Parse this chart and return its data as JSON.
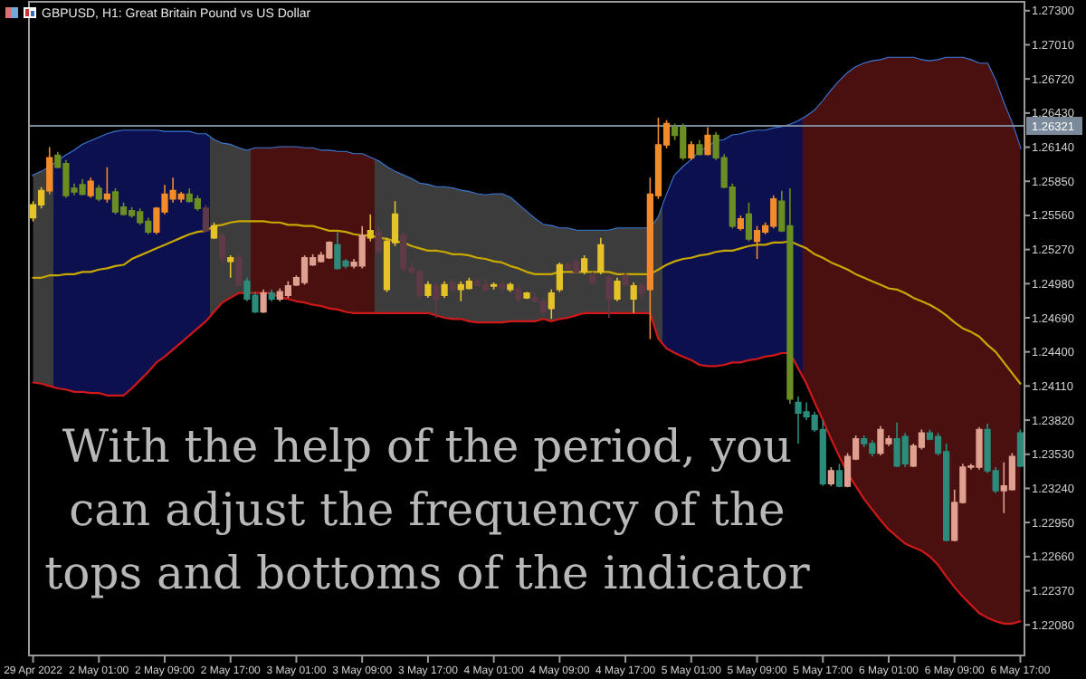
{
  "chart_data": {
    "type": "candlestick",
    "title": "GBPUSD, H1:  Great Britain Pound vs US Dollar",
    "annotations": [
      "With the help of the period, you\ncan adjust the frequency of the\ntops and bottoms of the indicator"
    ],
    "categories": [
      "29 Apr 2022",
      null,
      null,
      null,
      null,
      null,
      null,
      null,
      "2 May 01:00",
      null,
      null,
      null,
      null,
      null,
      null,
      null,
      "2 May 09:00",
      null,
      null,
      null,
      null,
      null,
      null,
      null,
      "2 May 17:00",
      null,
      null,
      null,
      null,
      null,
      null,
      null,
      "3 May 01:00",
      null,
      null,
      null,
      null,
      null,
      null,
      null,
      "3 May 09:00",
      null,
      null,
      null,
      null,
      null,
      null,
      null,
      "3 May 17:00",
      null,
      null,
      null,
      null,
      null,
      null,
      null,
      "4 May 01:00",
      null,
      null,
      null,
      null,
      null,
      null,
      null,
      "4 May 09:00",
      null,
      null,
      null,
      null,
      null,
      null,
      null,
      "4 May 17:00",
      null,
      null,
      null,
      null,
      null,
      null,
      null,
      "5 May 01:00",
      null,
      null,
      null,
      null,
      null,
      null,
      null,
      "5 May 09:00",
      null,
      null,
      null,
      null,
      null,
      null,
      null,
      "5 May 17:00",
      null,
      null,
      null,
      null,
      null,
      null,
      null,
      "6 May 01:00",
      null,
      null,
      null,
      null,
      null,
      null,
      null,
      "6 May 09:00",
      null,
      null,
      null,
      null,
      null,
      null,
      null,
      "6 May 17:00"
    ],
    "ylim": [
      1.2182,
      1.2736
    ],
    "yticks": [
      {
        "value": 1.273,
        "label": "1.27300"
      },
      {
        "value": 1.2701,
        "label": "1.27010"
      },
      {
        "value": 1.2672,
        "label": "1.26720"
      },
      {
        "value": 1.2643,
        "label": "1.26430"
      },
      {
        "value": 1.2614,
        "label": "1.26140"
      },
      {
        "value": 1.2585,
        "label": "1.25850"
      },
      {
        "value": 1.2556,
        "label": "1.25560"
      },
      {
        "value": 1.2527,
        "label": "1.25270"
      },
      {
        "value": 1.2498,
        "label": "1.24980"
      },
      {
        "value": 1.2469,
        "label": "1.24690"
      },
      {
        "value": 1.244,
        "label": "1.24400"
      },
      {
        "value": 1.2411,
        "label": "1.24110"
      },
      {
        "value": 1.2382,
        "label": "1.23820"
      },
      {
        "value": 1.2353,
        "label": "1.23530"
      },
      {
        "value": 1.2324,
        "label": "1.23240"
      },
      {
        "value": 1.2295,
        "label": "1.22950"
      },
      {
        "value": 1.2266,
        "label": "1.22660"
      },
      {
        "value": 1.2237,
        "label": "1.22370"
      },
      {
        "value": 1.2208,
        "label": "1.22080"
      }
    ],
    "ref_lines": [
      {
        "axis": "y",
        "value": 1.26321,
        "label": "1.26321",
        "color": "#7a8a9a"
      }
    ],
    "series": [
      {
        "type": "line",
        "color": "#3a78d8",
        "values": [
          1.259,
          1.2593,
          1.2597,
          1.2602,
          1.2607,
          1.2611,
          1.2616,
          1.2619,
          1.2622,
          1.2625,
          1.2627,
          1.2628,
          1.2628,
          1.2628,
          1.2628,
          1.2628,
          1.2627,
          1.2627,
          1.2627,
          1.2627,
          1.2625,
          1.2625,
          1.262,
          1.2617,
          1.2616,
          1.2613,
          1.2611,
          1.2613,
          1.2613,
          1.2613,
          1.2614,
          1.2614,
          1.2614,
          1.2613,
          1.2613,
          1.2611,
          1.2611,
          1.261,
          1.261,
          1.2608,
          1.2608,
          1.2605,
          1.2602,
          1.2597,
          1.2593,
          1.259,
          1.2587,
          1.2583,
          1.2582,
          1.258,
          1.258,
          1.2579,
          1.2577,
          1.2576,
          1.2574,
          1.2573,
          1.2574,
          1.2574,
          1.2571,
          1.2565,
          1.2559,
          1.2553,
          1.2548,
          1.2547,
          1.2545,
          1.2545,
          1.2543,
          1.2543,
          1.2543,
          1.2543,
          1.2543,
          1.2545,
          1.2545,
          1.2545,
          1.2545,
          1.2545,
          1.2554,
          1.2573,
          1.259,
          1.2597,
          1.2603,
          1.261,
          1.2614,
          1.2619,
          1.262,
          1.2624,
          1.2625,
          1.2627,
          1.2628,
          1.2628,
          1.263,
          1.2631,
          1.2633,
          1.2636,
          1.264,
          1.2645,
          1.2653,
          1.2662,
          1.267,
          1.2677,
          1.2682,
          1.2685,
          1.2687,
          1.2688,
          1.269,
          1.269,
          1.269,
          1.269,
          1.2688,
          1.2687,
          1.2688,
          1.269,
          1.269,
          1.269,
          1.2688,
          1.2685,
          1.2685,
          1.267,
          1.2651,
          1.2634,
          1.2613
        ]
      },
      {
        "type": "line",
        "color": "#c8a800",
        "values": [
          1.2503,
          1.2503,
          1.2505,
          1.2505,
          1.2506,
          1.2506,
          1.2508,
          1.2508,
          1.251,
          1.2511,
          1.2513,
          1.2514,
          1.2519,
          1.2522,
          1.2525,
          1.2528,
          1.2531,
          1.2534,
          1.2537,
          1.254,
          1.2542,
          1.2543,
          1.2547,
          1.2548,
          1.255,
          1.2551,
          1.2551,
          1.2551,
          1.2551,
          1.255,
          1.255,
          1.2548,
          1.2548,
          1.2547,
          1.2547,
          1.2545,
          1.2543,
          1.2543,
          1.2542,
          1.254,
          1.2539,
          1.2539,
          1.2537,
          1.2536,
          1.2534,
          1.2533,
          1.253,
          1.2528,
          1.2526,
          1.2526,
          1.2525,
          1.2523,
          1.2523,
          1.2522,
          1.252,
          1.2519,
          1.2517,
          1.2516,
          1.2513,
          1.2511,
          1.2508,
          1.2506,
          1.2506,
          1.2506,
          1.2508,
          1.2508,
          1.2508,
          1.2508,
          1.2508,
          1.2508,
          1.2508,
          1.2506,
          1.2506,
          1.2506,
          1.2506,
          1.2506,
          1.251,
          1.2514,
          1.2517,
          1.2519,
          1.252,
          1.2522,
          1.2523,
          1.2525,
          1.2526,
          1.2526,
          1.2528,
          1.253,
          1.2531,
          1.2531,
          1.2533,
          1.2533,
          1.2534,
          1.2531,
          1.2528,
          1.2523,
          1.252,
          1.2516,
          1.2513,
          1.251,
          1.2506,
          1.2503,
          1.25,
          1.2497,
          1.2494,
          1.2493,
          1.249,
          1.2486,
          1.2483,
          1.248,
          1.2476,
          1.2471,
          1.2465,
          1.246,
          1.2457,
          1.2453,
          1.2446,
          1.244,
          1.2431,
          1.2422,
          1.2413
        ],
        "lower": [
          1.2414,
          1.2413,
          1.2411,
          1.2409,
          1.2408,
          1.2406,
          1.2406,
          1.2405,
          1.2405,
          1.2403,
          1.2403,
          1.2403,
          1.2409,
          1.2416,
          1.2423,
          1.2431,
          1.2436,
          1.2442,
          1.2448,
          1.2454,
          1.246,
          1.2466,
          1.2474,
          1.2482,
          1.2486,
          1.249,
          1.249,
          1.249,
          1.249,
          1.249,
          1.2486,
          1.2485,
          1.2483,
          1.2482,
          1.248,
          1.2479,
          1.2477,
          1.2476,
          1.2474,
          1.2473,
          1.2473,
          1.2473,
          1.2473,
          1.2473,
          1.2473,
          1.2473,
          1.2473,
          1.2473,
          1.2473,
          1.2471,
          1.2469,
          1.2468,
          1.2468,
          1.2466,
          1.2465,
          1.2465,
          1.2465,
          1.2465,
          1.2466,
          1.2466,
          1.2466,
          1.2466,
          1.2468,
          1.2466,
          1.2468,
          1.2469,
          1.2471,
          1.2473,
          1.2473,
          1.2473,
          1.2473,
          1.2473,
          1.2473,
          1.2473,
          1.2473,
          1.2473,
          1.2451,
          1.2443,
          1.2439,
          1.2436,
          1.2433,
          1.2429,
          1.2428,
          1.2428,
          1.2429,
          1.2431,
          1.2431,
          1.2433,
          1.2434,
          1.2436,
          1.2437,
          1.2439,
          1.2439,
          1.2426,
          1.2413,
          1.2397,
          1.2382,
          1.2366,
          1.2351,
          1.2337,
          1.2326,
          1.2315,
          1.2306,
          1.2297,
          1.2289,
          1.2283,
          1.2277,
          1.2274,
          1.2271,
          1.2266,
          1.2259,
          1.2249,
          1.224,
          1.2232,
          1.2225,
          1.2218,
          1.2214,
          1.2211,
          1.2209,
          1.2209,
          1.2211
        ],
        "upper": [
          1.259,
          1.2593,
          1.2597,
          1.2602,
          1.2607,
          1.2611,
          1.2616,
          1.2619,
          1.2622,
          1.2625,
          1.2627,
          1.2628,
          1.2628,
          1.2628,
          1.2628,
          1.2628,
          1.2627,
          1.2627,
          1.2627,
          1.2627,
          1.2625,
          1.2625,
          1.262,
          1.2617,
          1.2616,
          1.2613,
          1.2611,
          1.2613,
          1.2613,
          1.2613,
          1.2614,
          1.2614,
          1.2614,
          1.2613,
          1.2613,
          1.2611,
          1.2611,
          1.261,
          1.261,
          1.2608,
          1.2608,
          1.2605,
          1.2602,
          1.2597,
          1.2593,
          1.259,
          1.2587,
          1.2583,
          1.2582,
          1.258,
          1.258,
          1.2579,
          1.2577,
          1.2576,
          1.2574,
          1.2573,
          1.2574,
          1.2574,
          1.2571,
          1.2565,
          1.2559,
          1.2553,
          1.2548,
          1.2547,
          1.2545,
          1.2545,
          1.2543,
          1.2543,
          1.2543,
          1.2543,
          1.2543,
          1.2545,
          1.2545,
          1.2545,
          1.2545,
          1.2545,
          1.2554,
          1.2573,
          1.259,
          1.2597,
          1.2603,
          1.261,
          1.2614,
          1.2619,
          1.262,
          1.2624,
          1.2625,
          1.2627,
          1.2628,
          1.2628,
          1.263,
          1.2631,
          1.2633,
          1.2636,
          1.264,
          1.2645,
          1.2653,
          1.2662,
          1.267,
          1.2677,
          1.2682,
          1.2685,
          1.2687,
          1.2688,
          1.269,
          1.269,
          1.269,
          1.269,
          1.2688,
          1.2687,
          1.2688,
          1.269,
          1.269,
          1.269,
          1.2688,
          1.2685,
          1.2685,
          1.267,
          1.2651,
          1.2634,
          1.2613
        ],
        "colors": [
          "#3c3c3c",
          "#3c3c3c",
          "#3c3c3c",
          "#0d104f",
          "#0d104f",
          "#0d104f",
          "#0d104f",
          "#0d104f",
          "#0d104f",
          "#0d104f",
          "#0d104f",
          "#0d104f",
          "#0d104f",
          "#0d104f",
          "#0d104f",
          "#0d104f",
          "#0d104f",
          "#0d104f",
          "#0d104f",
          "#0d104f",
          "#0d104f",
          "#0d104f",
          "#3c3c3c",
          "#3c3c3c",
          "#3c3c3c",
          "#3c3c3c",
          "#3c3c3c",
          "#4a1010",
          "#4a1010",
          "#4a1010",
          "#4a1010",
          "#4a1010",
          "#4a1010",
          "#4a1010",
          "#4a1010",
          "#4a1010",
          "#4a1010",
          "#4a1010",
          "#4a1010",
          "#4a1010",
          "#4a1010",
          "#4a1010",
          "#3c3c3c",
          "#3c3c3c",
          "#3c3c3c",
          "#3c3c3c",
          "#3c3c3c",
          "#3c3c3c",
          "#3c3c3c",
          "#3c3c3c",
          "#3c3c3c",
          "#3c3c3c",
          "#3c3c3c",
          "#3c3c3c",
          "#3c3c3c",
          "#3c3c3c",
          "#3c3c3c",
          "#3c3c3c",
          "#3c3c3c",
          "#3c3c3c",
          "#3c3c3c",
          "#3c3c3c",
          "#3c3c3c",
          "#3c3c3c",
          "#3c3c3c",
          "#3c3c3c",
          "#3c3c3c",
          "#3c3c3c",
          "#3c3c3c",
          "#3c3c3c",
          "#3c3c3c",
          "#3c3c3c",
          "#3c3c3c",
          "#3c3c3c",
          "#3c3c3c",
          "#3c3c3c",
          "#3c3c3c",
          "#0d104f",
          "#0d104f",
          "#0d104f",
          "#0d104f",
          "#0d104f",
          "#0d104f",
          "#0d104f",
          "#0d104f",
          "#0d104f",
          "#0d104f",
          "#0d104f",
          "#0d104f",
          "#0d104f",
          "#0d104f",
          "#0d104f",
          "#0d104f",
          "#0d104f",
          "#4a1010",
          "#4a1010",
          "#4a1010",
          "#4a1010",
          "#4a1010",
          "#4a1010",
          "#4a1010",
          "#4a1010",
          "#4a1010",
          "#4a1010",
          "#4a1010",
          "#4a1010",
          "#4a1010",
          "#4a1010",
          "#4a1010",
          "#4a1010",
          "#4a1010",
          "#4a1010",
          "#4a1010",
          "#4a1010",
          "#4a1010",
          "#4a1010",
          "#4a1010",
          "#4a1010",
          "#4a1010",
          "#4a1010",
          "#4a1010"
        ]
      },
      {
        "type": "line",
        "color": "#d01818",
        "values": [
          1.2414,
          1.2413,
          1.2411,
          1.2409,
          1.2408,
          1.2406,
          1.2406,
          1.2405,
          1.2405,
          1.2403,
          1.2403,
          1.2403,
          1.2409,
          1.2416,
          1.2423,
          1.2431,
          1.2436,
          1.2442,
          1.2448,
          1.2454,
          1.246,
          1.2466,
          1.2474,
          1.2482,
          1.2486,
          1.249,
          1.249,
          1.249,
          1.249,
          1.249,
          1.2486,
          1.2485,
          1.2483,
          1.2482,
          1.248,
          1.2479,
          1.2477,
          1.2476,
          1.2474,
          1.2473,
          1.2473,
          1.2473,
          1.2473,
          1.2473,
          1.2473,
          1.2473,
          1.2473,
          1.2473,
          1.2473,
          1.2471,
          1.2469,
          1.2468,
          1.2468,
          1.2466,
          1.2465,
          1.2465,
          1.2465,
          1.2465,
          1.2466,
          1.2466,
          1.2466,
          1.2466,
          1.2468,
          1.2466,
          1.2468,
          1.2469,
          1.2471,
          1.2473,
          1.2473,
          1.2473,
          1.2473,
          1.2473,
          1.2473,
          1.2473,
          1.2473,
          1.2473,
          1.2451,
          1.2443,
          1.2439,
          1.2436,
          1.2433,
          1.2429,
          1.2428,
          1.2428,
          1.2429,
          1.2431,
          1.2431,
          1.2433,
          1.2434,
          1.2436,
          1.2437,
          1.2439,
          1.2439,
          1.2426,
          1.2413,
          1.2397,
          1.2382,
          1.2366,
          1.2351,
          1.2337,
          1.2326,
          1.2315,
          1.2306,
          1.2297,
          1.2289,
          1.2283,
          1.2277,
          1.2274,
          1.2271,
          1.2266,
          1.2259,
          1.2249,
          1.224,
          1.2232,
          1.2225,
          1.2218,
          1.2214,
          1.2211,
          1.2209,
          1.2209,
          1.2211
        ]
      },
      {
        "type": "candlestick",
        "ohlc": [
          [
            1.2554,
            1.2568,
            1.2551,
            1.2565
          ],
          [
            1.2565,
            1.258,
            1.2562,
            1.2577
          ],
          [
            1.2577,
            1.2614,
            1.2574,
            1.2605
          ],
          [
            1.2607,
            1.261,
            1.2596,
            1.2597
          ],
          [
            1.26,
            1.2603,
            1.2571,
            1.2573
          ],
          [
            1.2579,
            1.2583,
            1.2573,
            1.2576
          ],
          [
            1.2582,
            1.2587,
            1.2573,
            1.2574
          ],
          [
            1.2573,
            1.2588,
            1.2571,
            1.2585
          ],
          [
            1.2579,
            1.2582,
            1.2568,
            1.257
          ],
          [
            1.257,
            1.2597,
            1.2567,
            1.2574
          ],
          [
            1.2576,
            1.2579,
            1.2557,
            1.2559
          ],
          [
            1.2563,
            1.2567,
            1.2556,
            1.2557
          ],
          [
            1.256,
            1.2563,
            1.2554,
            1.2556
          ],
          [
            1.2559,
            1.2562,
            1.2548,
            1.255
          ],
          [
            1.2551,
            1.2554,
            1.254,
            1.2542
          ],
          [
            1.2542,
            1.2563,
            1.254,
            1.2562
          ],
          [
            1.2559,
            1.2582,
            1.2557,
            1.2574
          ],
          [
            1.257,
            1.2588,
            1.2567,
            1.2577
          ],
          [
            1.257,
            1.2576,
            1.2567,
            1.2574
          ],
          [
            1.2574,
            1.2579,
            1.2567,
            1.2568
          ],
          [
            1.257,
            1.2573,
            1.256,
            1.2562
          ],
          [
            1.2562,
            1.2565,
            1.2542,
            1.2543
          ],
          [
            1.2537,
            1.255,
            1.2536,
            1.2547
          ],
          [
            1.2539,
            1.2542,
            1.2516,
            1.2519
          ],
          [
            1.2517,
            1.2522,
            1.2503,
            1.252
          ],
          [
            1.252,
            1.2523,
            1.2496,
            1.2497
          ],
          [
            1.25,
            1.2503,
            1.2483,
            1.2485
          ],
          [
            1.2488,
            1.2491,
            1.2473,
            1.2474
          ],
          [
            1.2474,
            1.2493,
            1.2473,
            1.249
          ],
          [
            1.249,
            1.2493,
            1.2483,
            1.2485
          ],
          [
            1.2485,
            1.2494,
            1.2483,
            1.2491
          ],
          [
            1.2488,
            1.25,
            1.2486,
            1.2496
          ],
          [
            1.2497,
            1.2505,
            1.2496,
            1.2503
          ],
          [
            1.2499,
            1.2522,
            1.2497,
            1.252
          ],
          [
            1.2514,
            1.2523,
            1.2513,
            1.252
          ],
          [
            1.2517,
            1.2525,
            1.2516,
            1.2522
          ],
          [
            1.252,
            1.2534,
            1.2519,
            1.2533
          ],
          [
            1.2531,
            1.2542,
            1.251,
            1.2511
          ],
          [
            1.2517,
            1.2519,
            1.2511,
            1.2513
          ],
          [
            1.2513,
            1.2519,
            1.2511,
            1.2516
          ],
          [
            1.2513,
            1.2547,
            1.2511,
            1.2539
          ],
          [
            1.2537,
            1.2557,
            1.2534,
            1.2543
          ],
          [
            1.2542,
            1.2547,
            1.2523,
            1.2526
          ],
          [
            1.2493,
            1.2537,
            1.2491,
            1.2534
          ],
          [
            1.2533,
            1.2568,
            1.253,
            1.2557
          ],
          [
            1.2539,
            1.2542,
            1.2508,
            1.2511
          ],
          [
            1.2511,
            1.2516,
            1.2506,
            1.2508
          ],
          [
            1.2508,
            1.2511,
            1.2485,
            1.2488
          ],
          [
            1.2488,
            1.25,
            1.2486,
            1.2497
          ],
          [
            1.2496,
            1.2499,
            1.2469,
            1.2485
          ],
          [
            1.2488,
            1.25,
            1.2486,
            1.2497
          ],
          [
            1.2499,
            1.2502,
            1.2491,
            1.2493
          ],
          [
            1.2493,
            1.25,
            1.2483,
            1.2497
          ],
          [
            1.2494,
            1.2503,
            1.2493,
            1.25
          ],
          [
            1.25,
            1.2503,
            1.2496,
            1.2497
          ],
          [
            1.2497,
            1.2502,
            1.2491,
            1.2493
          ],
          [
            1.2496,
            1.2499,
            1.2493,
            1.2497
          ],
          [
            1.2497,
            1.25,
            1.2491,
            1.2494
          ],
          [
            1.2493,
            1.2499,
            1.2491,
            1.2497
          ],
          [
            1.2494,
            1.2497,
            1.2482,
            1.2485
          ],
          [
            1.2486,
            1.2491,
            1.2485,
            1.249
          ],
          [
            1.2486,
            1.249,
            1.2482,
            1.2483
          ],
          [
            1.2483,
            1.2486,
            1.2471,
            1.2474
          ],
          [
            1.2477,
            1.2493,
            1.2468,
            1.249
          ],
          [
            1.2493,
            1.2516,
            1.2491,
            1.2514
          ],
          [
            1.2514,
            1.2517,
            1.251,
            1.2511
          ],
          [
            1.2516,
            1.2519,
            1.2506,
            1.2508
          ],
          [
            1.2508,
            1.2522,
            1.2506,
            1.2519
          ],
          [
            1.2505,
            1.2508,
            1.2497,
            1.2499
          ],
          [
            1.2508,
            1.2537,
            1.2506,
            1.2531
          ],
          [
            1.2503,
            1.2506,
            1.2469,
            1.2485
          ],
          [
            1.2485,
            1.2503,
            1.2483,
            1.25
          ],
          [
            1.2505,
            1.2508,
            1.2496,
            1.2497
          ],
          [
            1.2485,
            1.2499,
            1.2473,
            1.2496
          ],
          [
            1.2496,
            1.25,
            1.2485,
            1.249
          ],
          [
            1.2493,
            1.2588,
            1.2451,
            1.2574
          ],
          [
            1.2573,
            1.2639,
            1.257,
            1.2616
          ],
          [
            1.2616,
            1.2637,
            1.2613,
            1.2634
          ],
          [
            1.2631,
            1.2634,
            1.262,
            1.2624
          ],
          [
            1.2631,
            1.2634,
            1.2603,
            1.2605
          ],
          [
            1.2605,
            1.2619,
            1.2603,
            1.2616
          ],
          [
            1.2616,
            1.262,
            1.2607,
            1.2608
          ],
          [
            1.2608,
            1.2631,
            1.2607,
            1.2624
          ],
          [
            1.2624,
            1.2627,
            1.2603,
            1.2605
          ],
          [
            1.2605,
            1.2608,
            1.2579,
            1.258
          ],
          [
            1.258,
            1.2583,
            1.2545,
            1.2547
          ],
          [
            1.2545,
            1.2556,
            1.2543,
            1.2553
          ],
          [
            1.2557,
            1.2567,
            1.2534,
            1.2536
          ],
          [
            1.2534,
            1.2547,
            1.2519,
            1.2543
          ],
          [
            1.2542,
            1.255,
            1.254,
            1.2547
          ],
          [
            1.2547,
            1.2573,
            1.2545,
            1.257
          ],
          [
            1.2568,
            1.2577,
            1.2542,
            1.2543
          ],
          [
            1.2547,
            1.2579,
            1.2396,
            1.24
          ],
          [
            1.2397,
            1.2402,
            1.2362,
            1.2388
          ],
          [
            1.2389,
            1.2397,
            1.2382,
            1.2385
          ],
          [
            1.2386,
            1.2389,
            1.2372,
            1.2374
          ],
          [
            1.2374,
            1.2382,
            1.2326,
            1.2328
          ],
          [
            1.2328,
            1.2342,
            1.2326,
            1.2339
          ],
          [
            1.2339,
            1.2345,
            1.2325,
            1.2326
          ],
          [
            1.2326,
            1.2354,
            1.2325,
            1.2351
          ],
          [
            1.2349,
            1.2369,
            1.2348,
            1.2366
          ],
          [
            1.2366,
            1.2369,
            1.2359,
            1.2362
          ],
          [
            1.2362,
            1.2365,
            1.2351,
            1.2354
          ],
          [
            1.2354,
            1.2377,
            1.2352,
            1.2374
          ],
          [
            1.2362,
            1.2369,
            1.236,
            1.2366
          ],
          [
            1.2366,
            1.238,
            1.2342,
            1.2343
          ],
          [
            1.2368,
            1.2371,
            1.2342,
            1.2345
          ],
          [
            1.2343,
            1.2362,
            1.2342,
            1.236
          ],
          [
            1.2359,
            1.2374,
            1.2357,
            1.2371
          ],
          [
            1.2371,
            1.2374,
            1.2365,
            1.2366
          ],
          [
            1.2368,
            1.2371,
            1.2352,
            1.2354
          ],
          [
            1.2355,
            1.2362,
            1.2279,
            1.228
          ],
          [
            1.228,
            1.2323,
            1.2279,
            1.2312
          ],
          [
            1.2312,
            1.2345,
            1.2311,
            1.2342
          ],
          [
            1.2342,
            1.2345,
            1.234,
            1.2343
          ],
          [
            1.2342,
            1.2376,
            1.234,
            1.2374
          ],
          [
            1.2374,
            1.2379,
            1.2337,
            1.2339
          ],
          [
            1.2339,
            1.2342,
            1.232,
            1.2322
          ],
          [
            1.2322,
            1.2346,
            1.2303,
            1.2326
          ],
          [
            1.2323,
            1.2354,
            1.2322,
            1.2351
          ],
          [
            1.2371,
            1.2374,
            1.2342,
            1.2343
          ]
        ],
        "colors": [
          "#e6c229",
          "#e6c229",
          "#f28c28",
          "#6b8e23",
          "#6b8e23",
          "#6b8e23",
          "#6b8e23",
          "#f28c28",
          "#6b8e23",
          "#f28c28",
          "#6b8e23",
          "#6b8e23",
          "#6b8e23",
          "#6b8e23",
          "#6b8e23",
          "#f28c28",
          "#f28c28",
          "#f28c28",
          "#f28c28",
          "#6b8e23",
          "#6b8e23",
          "#5e3a46",
          "#e6c229",
          "#5e3a46",
          "#e6c229",
          "#5e3a46",
          "#2b8c7c",
          "#2b8c7c",
          "#e0a090",
          "#2b8c7c",
          "#e0a090",
          "#e0a090",
          "#e0a090",
          "#e0a090",
          "#e0a090",
          "#e0a090",
          "#e0a090",
          "#2b8c7c",
          "#2b8c7c",
          "#e0a090",
          "#e0a090",
          "#e6c229",
          "#5e3a46",
          "#e6c229",
          "#e6c229",
          "#5e3a46",
          "#5e3a46",
          "#5e3a46",
          "#e6c229",
          "#5e3a46",
          "#e6c229",
          "#5e3a46",
          "#e6c229",
          "#e6c229",
          "#5e3a46",
          "#5e3a46",
          "#e6c229",
          "#5e3a46",
          "#e6c229",
          "#5e3a46",
          "#e6c229",
          "#5e3a46",
          "#5e3a46",
          "#e6c229",
          "#e6c229",
          "#5e3a46",
          "#5e3a46",
          "#e6c229",
          "#5e3a46",
          "#e6c229",
          "#5e3a46",
          "#e6c229",
          "#5e3a46",
          "#e6c229",
          "#5e3a46",
          "#f28c28",
          "#f28c28",
          "#f28c28",
          "#6b8e23",
          "#6b8e23",
          "#f28c28",
          "#6b8e23",
          "#f28c28",
          "#6b8e23",
          "#6b8e23",
          "#6b8e23",
          "#f28c28",
          "#6b8e23",
          "#f28c28",
          "#f28c28",
          "#f28c28",
          "#6b8e23",
          "#6b8e23",
          "#2b8c7c",
          "#2b8c7c",
          "#2b8c7c",
          "#2b8c7c",
          "#e0a090",
          "#2b8c7c",
          "#e0a090",
          "#e0a090",
          "#2b8c7c",
          "#2b8c7c",
          "#e0a090",
          "#e0a090",
          "#2b8c7c",
          "#2b8c7c",
          "#e0a090",
          "#e0a090",
          "#2b8c7c",
          "#2b8c7c",
          "#2b8c7c",
          "#e0a090",
          "#e0a090",
          "#e0a090",
          "#e0a090",
          "#2b8c7c",
          "#2b8c7c",
          "#e0a090",
          "#e0a090",
          "#2b8c7c"
        ]
      }
    ]
  }
}
